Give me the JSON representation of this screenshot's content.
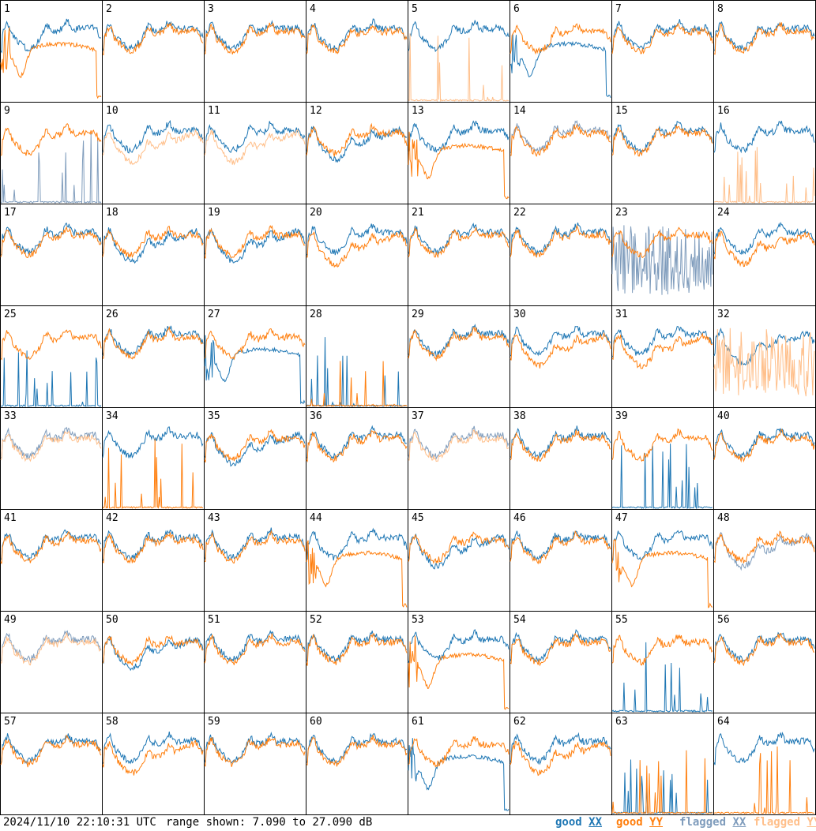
{
  "footer": {
    "timestamp": "2024/11/10 22:10:31 UTC",
    "range_text": "range shown: 7.090 to 27.090 dB"
  },
  "legend": [
    {
      "key": "good_xx",
      "word": "good",
      "pol": "XX",
      "color": "#1f77b4"
    },
    {
      "key": "good_yy",
      "word": "good",
      "pol": "YY",
      "color": "#ff7f0e"
    },
    {
      "key": "flagged_xx",
      "word": "flagged",
      "pol": "XX",
      "color": "#7f9cbc"
    },
    {
      "key": "flagged_yy",
      "word": "flagged",
      "pol": "YY",
      "color": "#ffbf8a"
    }
  ],
  "chart_data": {
    "type": "line",
    "title": "",
    "xlabel": "",
    "ylabel": "",
    "ylim": [
      7.09,
      27.09
    ],
    "units": "dB",
    "grid_rows": 8,
    "grid_cols": 8,
    "panels": [
      {
        "id": 1,
        "xx": "good",
        "yy": "good",
        "shape_xx": "normal",
        "shape_yy": "dip"
      },
      {
        "id": 2,
        "xx": "good",
        "yy": "good",
        "shape_xx": "normal",
        "shape_yy": "normal"
      },
      {
        "id": 3,
        "xx": "good",
        "yy": "good",
        "shape_xx": "normal",
        "shape_yy": "normal"
      },
      {
        "id": 4,
        "xx": "good",
        "yy": "good",
        "shape_xx": "normal",
        "shape_yy": "normal"
      },
      {
        "id": 5,
        "xx": "good",
        "yy": "flagged",
        "shape_xx": "normal",
        "shape_yy": "spiky"
      },
      {
        "id": 6,
        "xx": "good",
        "yy": "good",
        "shape_xx": "dip",
        "shape_yy": "normal"
      },
      {
        "id": 7,
        "xx": "good",
        "yy": "good",
        "shape_xx": "normal",
        "shape_yy": "normal"
      },
      {
        "id": 8,
        "xx": "good",
        "yy": "good",
        "shape_xx": "normal",
        "shape_yy": "normal"
      },
      {
        "id": 9,
        "xx": "flagged",
        "yy": "good",
        "shape_xx": "spiky",
        "shape_yy": "normal"
      },
      {
        "id": 10,
        "xx": "good",
        "yy": "flagged",
        "shape_xx": "normal",
        "shape_yy": "low"
      },
      {
        "id": 11,
        "xx": "good",
        "yy": "flagged",
        "shape_xx": "normal",
        "shape_yy": "low"
      },
      {
        "id": 12,
        "xx": "good",
        "yy": "good",
        "shape_xx": "low",
        "shape_yy": "normal"
      },
      {
        "id": 13,
        "xx": "good",
        "yy": "good",
        "shape_xx": "normal",
        "shape_yy": "dip"
      },
      {
        "id": 14,
        "xx": "flagged",
        "yy": "good",
        "shape_xx": "normal",
        "shape_yy": "normal"
      },
      {
        "id": 15,
        "xx": "good",
        "yy": "good",
        "shape_xx": "normal",
        "shape_yy": "normal"
      },
      {
        "id": 16,
        "xx": "good",
        "yy": "flagged",
        "shape_xx": "normal",
        "shape_yy": "spiky"
      },
      {
        "id": 17,
        "xx": "good",
        "yy": "good",
        "shape_xx": "normal",
        "shape_yy": "normal"
      },
      {
        "id": 18,
        "xx": "good",
        "yy": "good",
        "shape_xx": "low",
        "shape_yy": "normal"
      },
      {
        "id": 19,
        "xx": "good",
        "yy": "good",
        "shape_xx": "low",
        "shape_yy": "normal"
      },
      {
        "id": 20,
        "xx": "good",
        "yy": "good",
        "shape_xx": "normal",
        "shape_yy": "low"
      },
      {
        "id": 21,
        "xx": "good",
        "yy": "good",
        "shape_xx": "normal",
        "shape_yy": "normal"
      },
      {
        "id": 22,
        "xx": "good",
        "yy": "good",
        "shape_xx": "normal",
        "shape_yy": "normal"
      },
      {
        "id": 23,
        "xx": "flagged",
        "yy": "good",
        "shape_xx": "noisy",
        "shape_yy": "normal"
      },
      {
        "id": 24,
        "xx": "good",
        "yy": "good",
        "shape_xx": "normal",
        "shape_yy": "low"
      },
      {
        "id": 25,
        "xx": "good",
        "yy": "good",
        "shape_xx": "spiky",
        "shape_yy": "normal"
      },
      {
        "id": 26,
        "xx": "good",
        "yy": "good",
        "shape_xx": "normal",
        "shape_yy": "normal"
      },
      {
        "id": 27,
        "xx": "good",
        "yy": "good",
        "shape_xx": "dip",
        "shape_yy": "normal"
      },
      {
        "id": 28,
        "xx": "good",
        "yy": "good",
        "shape_xx": "spiky",
        "shape_yy": "spiky"
      },
      {
        "id": 29,
        "xx": "good",
        "yy": "good",
        "shape_xx": "normal",
        "shape_yy": "normal"
      },
      {
        "id": 30,
        "xx": "good",
        "yy": "good",
        "shape_xx": "normal",
        "shape_yy": "low"
      },
      {
        "id": 31,
        "xx": "good",
        "yy": "good",
        "shape_xx": "normal",
        "shape_yy": "low"
      },
      {
        "id": 32,
        "xx": "good",
        "yy": "flagged",
        "shape_xx": "low",
        "shape_yy": "noisy"
      },
      {
        "id": 33,
        "xx": "flagged",
        "yy": "flagged",
        "shape_xx": "normal",
        "shape_yy": "normal"
      },
      {
        "id": 34,
        "xx": "good",
        "yy": "good",
        "shape_xx": "normal",
        "shape_yy": "spiky"
      },
      {
        "id": 35,
        "xx": "good",
        "yy": "good",
        "shape_xx": "low",
        "shape_yy": "normal"
      },
      {
        "id": 36,
        "xx": "good",
        "yy": "good",
        "shape_xx": "normal",
        "shape_yy": "normal"
      },
      {
        "id": 37,
        "xx": "flagged",
        "yy": "flagged",
        "shape_xx": "normal",
        "shape_yy": "normal"
      },
      {
        "id": 38,
        "xx": "good",
        "yy": "good",
        "shape_xx": "normal",
        "shape_yy": "normal"
      },
      {
        "id": 39,
        "xx": "good",
        "yy": "good",
        "shape_xx": "spiky",
        "shape_yy": "normal"
      },
      {
        "id": 40,
        "xx": "good",
        "yy": "good",
        "shape_xx": "normal",
        "shape_yy": "normal"
      },
      {
        "id": 41,
        "xx": "good",
        "yy": "good",
        "shape_xx": "normal",
        "shape_yy": "normal"
      },
      {
        "id": 42,
        "xx": "good",
        "yy": "good",
        "shape_xx": "normal",
        "shape_yy": "normal"
      },
      {
        "id": 43,
        "xx": "good",
        "yy": "good",
        "shape_xx": "normal",
        "shape_yy": "normal"
      },
      {
        "id": 44,
        "xx": "good",
        "yy": "good",
        "shape_xx": "normal",
        "shape_yy": "dip"
      },
      {
        "id": 45,
        "xx": "good",
        "yy": "good",
        "shape_xx": "low",
        "shape_yy": "normal"
      },
      {
        "id": 46,
        "xx": "good",
        "yy": "good",
        "shape_xx": "normal",
        "shape_yy": "normal"
      },
      {
        "id": 47,
        "xx": "good",
        "yy": "good",
        "shape_xx": "normal",
        "shape_yy": "dip"
      },
      {
        "id": 48,
        "xx": "flagged",
        "yy": "good",
        "shape_xx": "low",
        "shape_yy": "normal"
      },
      {
        "id": 49,
        "xx": "flagged",
        "yy": "flagged",
        "shape_xx": "normal",
        "shape_yy": "normal"
      },
      {
        "id": 50,
        "xx": "good",
        "yy": "good",
        "shape_xx": "low",
        "shape_yy": "normal"
      },
      {
        "id": 51,
        "xx": "good",
        "yy": "good",
        "shape_xx": "normal",
        "shape_yy": "normal"
      },
      {
        "id": 52,
        "xx": "good",
        "yy": "good",
        "shape_xx": "normal",
        "shape_yy": "normal"
      },
      {
        "id": 53,
        "xx": "good",
        "yy": "good",
        "shape_xx": "normal",
        "shape_yy": "dip"
      },
      {
        "id": 54,
        "xx": "good",
        "yy": "good",
        "shape_xx": "normal",
        "shape_yy": "normal"
      },
      {
        "id": 55,
        "xx": "good",
        "yy": "good",
        "shape_xx": "spiky",
        "shape_yy": "normal"
      },
      {
        "id": 56,
        "xx": "good",
        "yy": "good",
        "shape_xx": "normal",
        "shape_yy": "normal"
      },
      {
        "id": 57,
        "xx": "good",
        "yy": "good",
        "shape_xx": "normal",
        "shape_yy": "normal"
      },
      {
        "id": 58,
        "xx": "good",
        "yy": "good",
        "shape_xx": "normal",
        "shape_yy": "low"
      },
      {
        "id": 59,
        "xx": "good",
        "yy": "good",
        "shape_xx": "normal",
        "shape_yy": "normal"
      },
      {
        "id": 60,
        "xx": "good",
        "yy": "good",
        "shape_xx": "normal",
        "shape_yy": "normal"
      },
      {
        "id": 61,
        "xx": "good",
        "yy": "good",
        "shape_xx": "dip",
        "shape_yy": "normal"
      },
      {
        "id": 62,
        "xx": "good",
        "yy": "good",
        "shape_xx": "normal",
        "shape_yy": "low"
      },
      {
        "id": 63,
        "xx": "good",
        "yy": "good",
        "shape_xx": "spiky",
        "shape_yy": "spiky"
      },
      {
        "id": 64,
        "xx": "good",
        "yy": "good",
        "shape_xx": "normal",
        "shape_yy": "spiky"
      }
    ]
  }
}
